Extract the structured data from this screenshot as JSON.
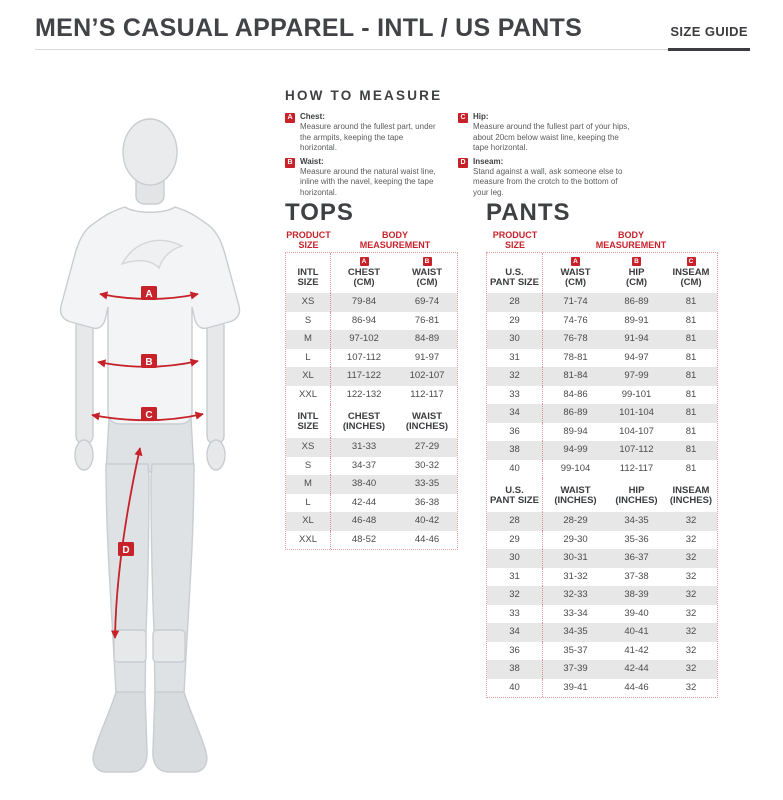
{
  "header": {
    "title": "MEN’S CASUAL APPAREL - INTL / US PANTS",
    "size_guide_label": "SIZE GUIDE"
  },
  "how_to_measure": {
    "title": "HOW TO MEASURE",
    "items": [
      {
        "badge": "A",
        "label": "Chest:",
        "text": "Measure around the fullest part, under the armpits, keeping the tape horizontal."
      },
      {
        "badge": "B",
        "label": "Waist:",
        "text": "Measure around the natural waist line, inline with the navel, keeping the tape horizontal."
      },
      {
        "badge": "C",
        "label": "Hip:",
        "text": "Measure around the fullest part of your hips, about 20cm below waist line, keeping the tape horizontal."
      },
      {
        "badge": "D",
        "label": "Inseam:",
        "text": "Stand against a wall, ask someone else to measure from the crotch to the bottom of your leg."
      }
    ]
  },
  "figure": {
    "markers": [
      "A",
      "B",
      "C",
      "D"
    ]
  },
  "tops": {
    "title": "TOPS",
    "product_size_label": "PRODUCT\nSIZE",
    "body_measurement_label": "BODY\nMEASUREMENT",
    "cm": {
      "badges": [
        "",
        "A",
        "B"
      ],
      "headers": [
        "INTL\nSIZE",
        "CHEST\n(CM)",
        "WAIST\n(CM)"
      ],
      "rows": [
        [
          "XS",
          "79-84",
          "69-74"
        ],
        [
          "S",
          "86-94",
          "76-81"
        ],
        [
          "M",
          "97-102",
          "84-89"
        ],
        [
          "L",
          "107-112",
          "91-97"
        ],
        [
          "XL",
          "117-122",
          "102-107"
        ],
        [
          "XXL",
          "122-132",
          "112-117"
        ]
      ]
    },
    "inches": {
      "badges": [
        "",
        "",
        ""
      ],
      "headers": [
        "INTL\nSIZE",
        "CHEST\n(INCHES)",
        "WAIST\n(INCHES)"
      ],
      "rows": [
        [
          "XS",
          "31-33",
          "27-29"
        ],
        [
          "S",
          "34-37",
          "30-32"
        ],
        [
          "M",
          "38-40",
          "33-35"
        ],
        [
          "L",
          "42-44",
          "36-38"
        ],
        [
          "XL",
          "46-48",
          "40-42"
        ],
        [
          "XXL",
          "48-52",
          "44-46"
        ]
      ]
    }
  },
  "pants": {
    "title": "PANTS",
    "product_size_label": "PRODUCT\nSIZE",
    "body_measurement_label": "BODY\nMEASUREMENT",
    "cm": {
      "badges": [
        "",
        "A",
        "B",
        "C"
      ],
      "headers": [
        "U.S.\nPANT SIZE",
        "WAIST\n(CM)",
        "HIP\n(CM)",
        "INSEAM\n(CM)"
      ],
      "rows": [
        [
          "28",
          "71-74",
          "86-89",
          "81"
        ],
        [
          "29",
          "74-76",
          "89-91",
          "81"
        ],
        [
          "30",
          "76-78",
          "91-94",
          "81"
        ],
        [
          "31",
          "78-81",
          "94-97",
          "81"
        ],
        [
          "32",
          "81-84",
          "97-99",
          "81"
        ],
        [
          "33",
          "84-86",
          "99-101",
          "81"
        ],
        [
          "34",
          "86-89",
          "101-104",
          "81"
        ],
        [
          "36",
          "89-94",
          "104-107",
          "81"
        ],
        [
          "38",
          "94-99",
          "107-112",
          "81"
        ],
        [
          "40",
          "99-104",
          "112-117",
          "81"
        ]
      ]
    },
    "inches": {
      "badges": [
        "",
        "",
        "",
        ""
      ],
      "headers": [
        "U.S.\nPANT SIZE",
        "WAIST\n(INCHES)",
        "HIP\n(INCHES)",
        "INSEAM\n(INCHES)"
      ],
      "rows": [
        [
          "28",
          "28-29",
          "34-35",
          "32"
        ],
        [
          "29",
          "29-30",
          "35-36",
          "32"
        ],
        [
          "30",
          "30-31",
          "36-37",
          "32"
        ],
        [
          "31",
          "31-32",
          "37-38",
          "32"
        ],
        [
          "32",
          "32-33",
          "38-39",
          "32"
        ],
        [
          "33",
          "33-34",
          "39-40",
          "32"
        ],
        [
          "34",
          "34-35",
          "40-41",
          "32"
        ],
        [
          "36",
          "35-37",
          "41-42",
          "32"
        ],
        [
          "38",
          "37-39",
          "42-44",
          "32"
        ],
        [
          "40",
          "39-41",
          "44-46",
          "32"
        ]
      ]
    }
  },
  "colors": {
    "accent_red": "#c7222a",
    "heading_dark": "#3e4043",
    "body_text": "#5a5c5e",
    "row_stripe": "#e7e7e7"
  }
}
